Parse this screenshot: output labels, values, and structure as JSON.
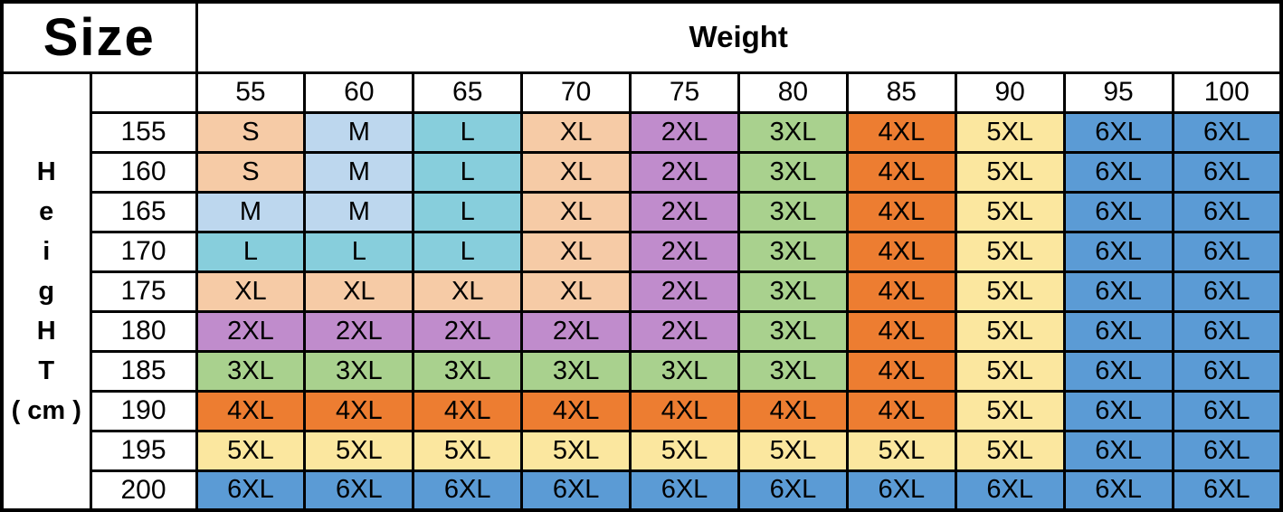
{
  "table": {
    "size_label": "Size",
    "weight_label": "Weight",
    "height_label_letters": [
      "H",
      "e",
      "i",
      "g",
      "H",
      "T",
      "( cm )"
    ],
    "weights": [
      "55",
      "60",
      "65",
      "70",
      "75",
      "80",
      "85",
      "90",
      "95",
      "100"
    ],
    "heights": [
      "155",
      "160",
      "165",
      "170",
      "175",
      "180",
      "185",
      "190",
      "195",
      "200"
    ],
    "rows": [
      [
        "S",
        "M",
        "L",
        "XL",
        "2XL",
        "3XL",
        "4XL",
        "5XL",
        "6XL",
        "6XL"
      ],
      [
        "S",
        "M",
        "L",
        "XL",
        "2XL",
        "3XL",
        "4XL",
        "5XL",
        "6XL",
        "6XL"
      ],
      [
        "M",
        "M",
        "L",
        "XL",
        "2XL",
        "3XL",
        "4XL",
        "5XL",
        "6XL",
        "6XL"
      ],
      [
        "L",
        "L",
        "L",
        "XL",
        "2XL",
        "3XL",
        "4XL",
        "5XL",
        "6XL",
        "6XL"
      ],
      [
        "XL",
        "XL",
        "XL",
        "XL",
        "2XL",
        "3XL",
        "4XL",
        "5XL",
        "6XL",
        "6XL"
      ],
      [
        "2XL",
        "2XL",
        "2XL",
        "2XL",
        "2XL",
        "3XL",
        "4XL",
        "5XL",
        "6XL",
        "6XL"
      ],
      [
        "3XL",
        "3XL",
        "3XL",
        "3XL",
        "3XL",
        "3XL",
        "4XL",
        "5XL",
        "6XL",
        "6XL"
      ],
      [
        "4XL",
        "4XL",
        "4XL",
        "4XL",
        "4XL",
        "4XL",
        "4XL",
        "5XL",
        "6XL",
        "6XL"
      ],
      [
        "5XL",
        "5XL",
        "5XL",
        "5XL",
        "5XL",
        "5XL",
        "5XL",
        "5XL",
        "6XL",
        "6XL"
      ],
      [
        "6XL",
        "6XL",
        "6XL",
        "6XL",
        "6XL",
        "6XL",
        "6XL",
        "6XL",
        "6XL",
        "6XL"
      ]
    ],
    "size_colors": {
      "S": "#F6CBA6",
      "M": "#BDD7EE",
      "L": "#87CEDC",
      "XL": "#F6CBA6",
      "2XL": "#C08CCC",
      "3XL": "#A9D18E",
      "4XL": "#ED7D31",
      "5XL": "#FBE79F",
      "6XL": "#5B9BD5"
    },
    "border_color": "#000000"
  },
  "chart_data": {
    "type": "table",
    "title": "Size",
    "xlabel": "Weight",
    "ylabel": "Height (cm)",
    "columns": [
      55,
      60,
      65,
      70,
      75,
      80,
      85,
      90,
      95,
      100
    ],
    "rows": [
      155,
      160,
      165,
      170,
      175,
      180,
      185,
      190,
      195,
      200
    ],
    "values": [
      [
        "S",
        "M",
        "L",
        "XL",
        "2XL",
        "3XL",
        "4XL",
        "5XL",
        "6XL",
        "6XL"
      ],
      [
        "S",
        "M",
        "L",
        "XL",
        "2XL",
        "3XL",
        "4XL",
        "5XL",
        "6XL",
        "6XL"
      ],
      [
        "M",
        "M",
        "L",
        "XL",
        "2XL",
        "3XL",
        "4XL",
        "5XL",
        "6XL",
        "6XL"
      ],
      [
        "L",
        "L",
        "L",
        "XL",
        "2XL",
        "3XL",
        "4XL",
        "5XL",
        "6XL",
        "6XL"
      ],
      [
        "XL",
        "XL",
        "XL",
        "XL",
        "2XL",
        "3XL",
        "4XL",
        "5XL",
        "6XL",
        "6XL"
      ],
      [
        "2XL",
        "2XL",
        "2XL",
        "2XL",
        "2XL",
        "3XL",
        "4XL",
        "5XL",
        "6XL",
        "6XL"
      ],
      [
        "3XL",
        "3XL",
        "3XL",
        "3XL",
        "3XL",
        "3XL",
        "4XL",
        "5XL",
        "6XL",
        "6XL"
      ],
      [
        "4XL",
        "4XL",
        "4XL",
        "4XL",
        "4XL",
        "4XL",
        "4XL",
        "5XL",
        "6XL",
        "6XL"
      ],
      [
        "5XL",
        "5XL",
        "5XL",
        "5XL",
        "5XL",
        "5XL",
        "5XL",
        "5XL",
        "6XL",
        "6XL"
      ],
      [
        "6XL",
        "6XL",
        "6XL",
        "6XL",
        "6XL",
        "6XL",
        "6XL",
        "6XL",
        "6XL",
        "6XL"
      ]
    ],
    "legend": "off",
    "grid": "on"
  }
}
